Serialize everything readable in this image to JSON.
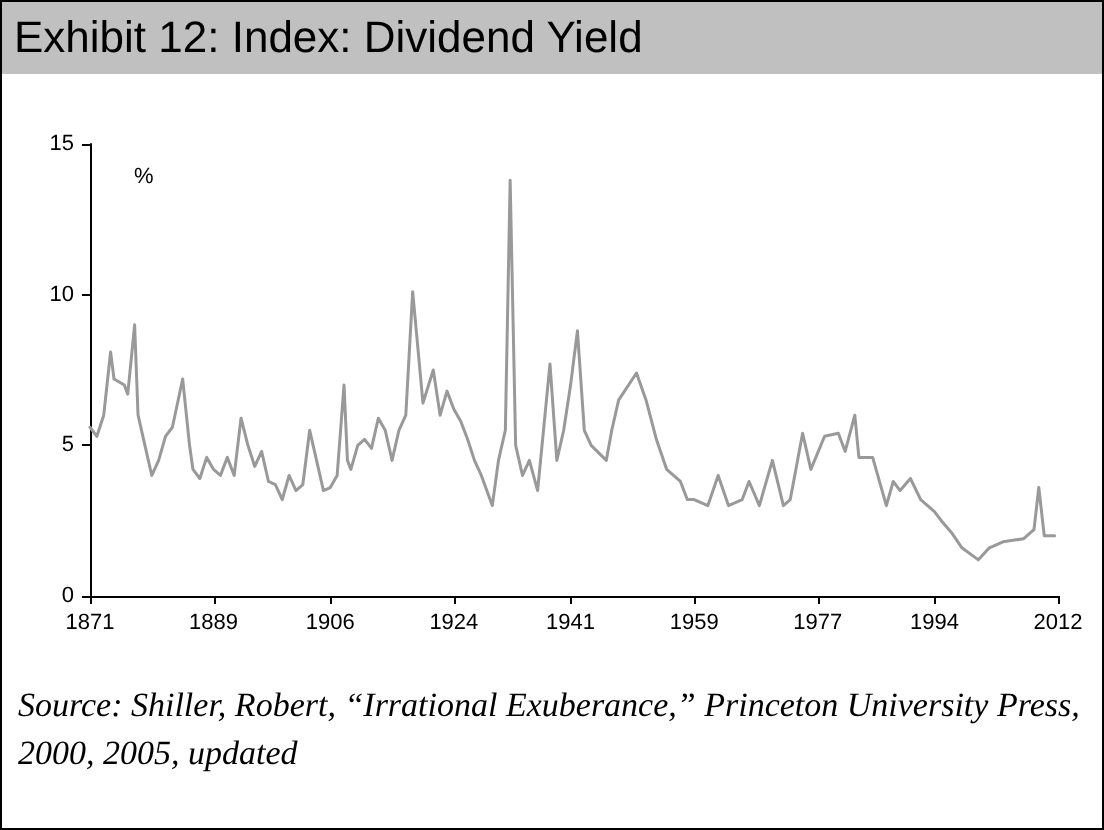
{
  "chart_data": {
    "type": "line",
    "title": "Exhibit 12: Index: Dividend Yield",
    "ylabel": "%",
    "annotations": [
      "Source: Shiller, Robert, “Irrational Exuberance,” Princeton University Press, 2000, 2005, updated"
    ],
    "series": [
      {
        "color": "#999999",
        "x": [
          1871,
          1872,
          1873,
          1874,
          1874.5,
          1876,
          1876.5,
          1877.5,
          1878,
          1879,
          1880,
          1881,
          1882,
          1883,
          1884.5,
          1885.5,
          1886,
          1887,
          1888,
          1889,
          1890,
          1891,
          1892,
          1893,
          1894,
          1895,
          1896,
          1897,
          1898,
          1899,
          1900,
          1901,
          1902,
          1903,
          1904,
          1905,
          1906,
          1907,
          1908,
          1908.5,
          1909,
          1910,
          1911,
          1912,
          1913,
          1914,
          1915,
          1916,
          1917,
          1918,
          1919.5,
          1921,
          1922,
          1923,
          1924,
          1925,
          1926,
          1927,
          1928,
          1929.6,
          1930.5,
          1931.5,
          1932.2,
          1933,
          1934,
          1935,
          1936.2,
          1938,
          1939,
          1940,
          1941,
          1942,
          1943,
          1944,
          1946.2,
          1947,
          1948,
          1950.6,
          1952,
          1953.5,
          1955,
          1957,
          1958,
          1959,
          1961,
          1962.5,
          1964,
          1966,
          1967,
          1968.5,
          1970.4,
          1972,
          1973,
          1974.8,
          1976,
          1978,
          1980,
          1981,
          1982.4,
          1983,
          1985,
          1987,
          1988,
          1989,
          1990.5,
          1992,
          1994,
          1995,
          1996.5,
          1998,
          2000.4,
          2002,
          2004,
          2007,
          2008.5,
          2009.2,
          2010,
          2011.5
        ],
        "values": [
          5.6,
          5.3,
          6.0,
          8.1,
          7.2,
          7.0,
          6.7,
          9.0,
          6.0,
          5.0,
          4.0,
          4.5,
          5.3,
          5.6,
          7.2,
          5.0,
          4.2,
          3.9,
          4.6,
          4.2,
          4.0,
          4.6,
          4.0,
          5.9,
          5.0,
          4.3,
          4.8,
          3.8,
          3.7,
          3.2,
          4.0,
          3.5,
          3.7,
          5.5,
          4.5,
          3.5,
          3.6,
          4.0,
          7.0,
          4.5,
          4.2,
          5.0,
          5.2,
          4.9,
          5.9,
          5.5,
          4.5,
          5.5,
          6.0,
          10.1,
          6.4,
          7.5,
          6.0,
          6.8,
          6.2,
          5.8,
          5.2,
          4.5,
          4.0,
          3.0,
          4.5,
          5.5,
          13.8,
          5.0,
          4.0,
          4.5,
          3.5,
          7.7,
          4.5,
          5.5,
          7.0,
          8.8,
          5.5,
          5.0,
          4.5,
          5.5,
          6.5,
          7.4,
          6.5,
          5.2,
          4.2,
          3.8,
          3.2,
          3.2,
          3.0,
          4.0,
          3.0,
          3.2,
          3.8,
          3.0,
          4.5,
          3.0,
          3.2,
          5.4,
          4.2,
          5.3,
          5.4,
          4.8,
          6.0,
          4.6,
          4.6,
          3.0,
          3.8,
          3.5,
          3.9,
          3.2,
          2.8,
          2.5,
          2.1,
          1.6,
          1.2,
          1.6,
          1.8,
          1.9,
          2.2,
          3.6,
          2.0,
          2.0
        ]
      }
    ],
    "xlim": [
      1871,
      2012
    ],
    "xticks": [
      1871,
      1889,
      1906,
      1924,
      1941,
      1959,
      1977,
      1994,
      2012
    ],
    "ylim": [
      0,
      15
    ],
    "yticks": [
      0,
      5,
      10,
      15
    ],
    "grid": false,
    "marker": "none",
    "line_style": "solid"
  }
}
